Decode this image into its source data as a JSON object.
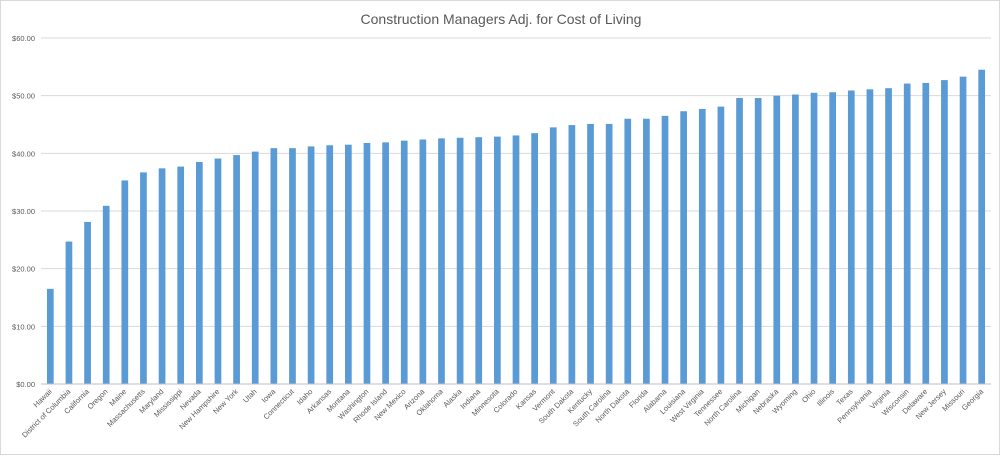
{
  "chart_data": {
    "type": "bar",
    "title": "Construction Managers Adj. for Cost of Living",
    "xlabel": "",
    "ylabel": "",
    "ylim": [
      0,
      60
    ],
    "ytick_labels": [
      "$0.00",
      "$10.00",
      "$20.00",
      "$30.00",
      "$40.00",
      "$50.00",
      "$60.00"
    ],
    "grid": true,
    "colors": {
      "bar": "#5b9bd5",
      "grid": "#d9d9d9",
      "text": "#595959"
    },
    "categories": [
      "Hawaii",
      "District of Columbia",
      "California",
      "Oregon",
      "Maine",
      "Massachusetts",
      "Maryland",
      "Mississippi",
      "Nevada",
      "New Hampshire",
      "New York",
      "Utah",
      "Iowa",
      "Connecticut",
      "Idaho",
      "Arkansas",
      "Montana",
      "Washington",
      "Rhode Island",
      "New Mexico",
      "Arizona",
      "Oklahoma",
      "Alaska",
      "Indiana",
      "Minnesota",
      "Colorado",
      "Kansas",
      "Vermont",
      "South Dakota",
      "Kentucky",
      "South Carolina",
      "North Dakota",
      "Florida",
      "Alabama",
      "Louisiana",
      "West Virginia",
      "Tennessee",
      "North Carolina",
      "Michigan",
      "Nebraska",
      "Wyoming",
      "Ohio",
      "Illinois",
      "Texas",
      "Pennsylvania",
      "Virginia",
      "Wisconsin",
      "Delaware",
      "New Jersey",
      "Missouri",
      "Georgia"
    ],
    "values": [
      16.5,
      24.7,
      28.1,
      30.9,
      35.3,
      36.7,
      37.4,
      37.7,
      38.5,
      39.1,
      39.7,
      40.3,
      40.9,
      40.9,
      41.2,
      41.4,
      41.5,
      41.8,
      41.9,
      42.2,
      42.4,
      42.6,
      42.7,
      42.8,
      42.9,
      43.1,
      43.5,
      44.5,
      44.9,
      45.1,
      45.1,
      46.0,
      46.0,
      46.5,
      47.3,
      47.7,
      48.1,
      49.6,
      49.6,
      50.0,
      50.2,
      50.5,
      50.6,
      50.9,
      51.1,
      51.3,
      52.1,
      52.2,
      52.7,
      53.3,
      54.5
    ]
  }
}
